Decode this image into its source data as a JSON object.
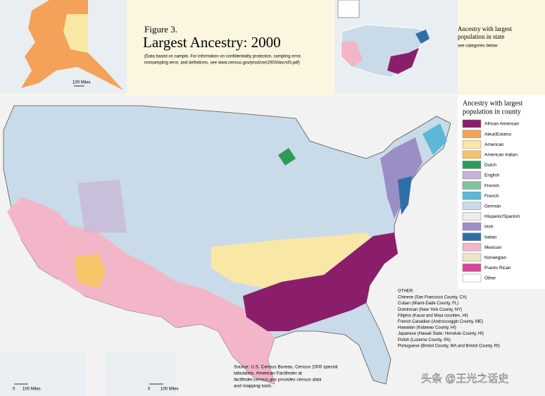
{
  "header": {
    "figure": "Figure 3.",
    "title": "Largest Ancestry: 2000",
    "note": [
      "(Data based on sample. For information on confidentiality protection, sampling error,",
      "nonsampling error, and definitions, see www.census.gov/prod/cen2000/doc/sf3.pdf)"
    ]
  },
  "state_inset": {
    "title": [
      "Ancestry with largest",
      "population in state"
    ],
    "subtitle": "see categories below"
  },
  "legend": {
    "title": [
      "Ancestry with largest",
      "population in county"
    ],
    "items": [
      {
        "name": "African American",
        "color": "#8b1e6b"
      },
      {
        "name": "Aleut/Eskimo",
        "color": "#f4a259"
      },
      {
        "name": "American",
        "color": "#f9e7a6"
      },
      {
        "name": "American Indian",
        "color": "#f6c469"
      },
      {
        "name": "Dutch",
        "color": "#2e9a5a"
      },
      {
        "name": "English",
        "color": "#c9b3d6"
      },
      {
        "name": "Finnish",
        "color": "#7dc49b"
      },
      {
        "name": "French",
        "color": "#5bb8d8"
      },
      {
        "name": "German",
        "color": "#c9dbe8"
      },
      {
        "name": "Hispanic/Spanish",
        "color": "#ededed"
      },
      {
        "name": "Irish",
        "color": "#9b8ec4"
      },
      {
        "name": "Italian",
        "color": "#2f6fa8"
      },
      {
        "name": "Mexican",
        "color": "#f2b6c8"
      },
      {
        "name": "Norwegian",
        "color": "#ece6c8"
      },
      {
        "name": "Puerto Rican",
        "color": "#d9479a"
      },
      {
        "name": "Other",
        "color": "#ffffff"
      }
    ]
  },
  "other": {
    "title": "OTHER:",
    "items": [
      "Chinese (San Francisco County, CA)",
      "Cuban (Miami-Dade County, FL)",
      "Dominican (New York County, NY)",
      "Filipino (Kauai and Maui counties, HI)",
      "French Canadian (Androscoggin County, ME)",
      "Hawaiian (Kalawao County, HI)",
      "Japanese (Hawaii State; Honolulu County, HI)",
      "Polish (Luzerne County, PA)",
      "Portuguese (Bristol County, MA and Bristol County, RI)"
    ]
  },
  "source": [
    "Source: U.S. Census Bureau, Census 2000 special",
    "tabulation. American Factfinder at",
    "factfinder.census.gov provides census data",
    "and mapping tools."
  ],
  "scales": {
    "alaska": "100 Miles",
    "hawaii": [
      "0",
      "100 Miles"
    ],
    "main": [
      "0",
      "100 Miles"
    ]
  },
  "watermark": "头条 @王光之话史"
}
